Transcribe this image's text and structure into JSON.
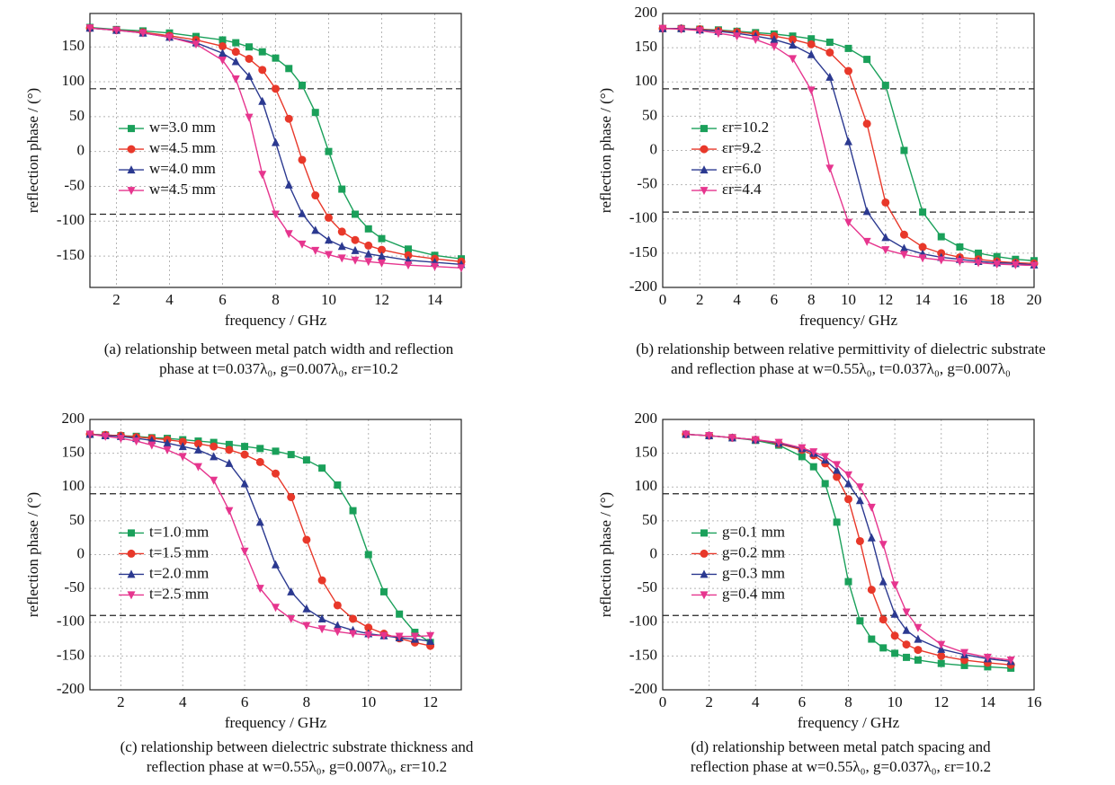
{
  "chart_data": [
    {
      "type": "line",
      "xlabel": "frequency / GHz",
      "ylabel": "reflection phase / (°)",
      "caption": [
        "(a) relationship between metal patch width and reflection",
        "phase at t=0.037λ₀, g=0.007λ₀, εr=10.2"
      ],
      "x": [
        1,
        2,
        3,
        4,
        5,
        6,
        6.5,
        7,
        7.5,
        8,
        8.5,
        9,
        9.5,
        10,
        10.5,
        11,
        11.5,
        12,
        13,
        14,
        15
      ],
      "xlim": [
        1,
        15
      ],
      "xticks": [
        2,
        4,
        6,
        8,
        10,
        12,
        14
      ],
      "ylim": [
        -195,
        198
      ],
      "yticks": [
        -150,
        -100,
        -50,
        0,
        50,
        100,
        150
      ],
      "grid": true,
      "hlines": [
        90,
        -90
      ],
      "legend": "center left",
      "series": [
        {
          "name": "w=3.0 mm",
          "color": "#1aa05a",
          "marker": "square",
          "values": [
            178,
            175,
            173,
            170,
            165,
            160,
            156,
            150,
            143,
            134,
            119,
            95,
            56,
            0,
            -54,
            -90,
            -111,
            -125,
            -140,
            -149,
            -154
          ]
        },
        {
          "name": "w=4.5 mm",
          "color": "#e8382a",
          "marker": "circle",
          "values": [
            177,
            174,
            171,
            166,
            160,
            151,
            143,
            133,
            117,
            90,
            47,
            -12,
            -63,
            -95,
            -115,
            -127,
            -135,
            -141,
            -149,
            -154,
            -158
          ]
        },
        {
          "name": "w=4.0 mm",
          "color": "#2b3990",
          "marker": "triangle-up",
          "values": [
            177,
            174,
            170,
            164,
            156,
            141,
            129,
            108,
            72,
            13,
            -48,
            -89,
            -113,
            -127,
            -136,
            -142,
            -147,
            -150,
            -156,
            -159,
            -162
          ]
        },
        {
          "name": "w=4.5 mm",
          "color": "#e6358e",
          "marker": "triangle-down",
          "values": [
            177,
            174,
            170,
            164,
            154,
            131,
            104,
            49,
            -33,
            -90,
            -118,
            -133,
            -142,
            -148,
            -153,
            -156,
            -158,
            -160,
            -163,
            -165,
            -167
          ]
        }
      ]
    },
    {
      "type": "line",
      "xlabel": "frequency/ GHz",
      "ylabel": "reflection phase / (°)",
      "caption": [
        "(b) relationship between relative permittivity of dielectric substrate",
        "and reflection phase at w=0.55λ₀, t=0.037λ₀, g=0.007λ₀"
      ],
      "x": [
        0,
        1,
        2,
        3,
        4,
        5,
        6,
        7,
        8,
        9,
        10,
        11,
        12,
        13,
        14,
        15,
        16,
        17,
        18,
        19,
        20
      ],
      "xlim": [
        0,
        20
      ],
      "xticks": [
        0,
        2,
        4,
        6,
        8,
        10,
        12,
        14,
        16,
        18,
        20
      ],
      "ylim": [
        -200,
        200
      ],
      "yticks": [
        -200,
        -150,
        -100,
        -50,
        0,
        50,
        100,
        150,
        200
      ],
      "grid": true,
      "hlines": [
        90,
        -90
      ],
      "legend": "center left",
      "series": [
        {
          "name": "εr=10.2",
          "color": "#1aa05a",
          "marker": "square",
          "values": [
            178,
            178,
            177,
            176,
            174,
            172,
            170,
            167,
            163,
            158,
            149,
            133,
            95,
            0,
            -90,
            -126,
            -141,
            -150,
            -155,
            -159,
            -161
          ]
        },
        {
          "name": "εr=9.2",
          "color": "#e8382a",
          "marker": "circle",
          "values": [
            178,
            178,
            177,
            175,
            173,
            170,
            167,
            162,
            155,
            143,
            116,
            39,
            -76,
            -123,
            -141,
            -150,
            -156,
            -159,
            -162,
            -164,
            -165
          ]
        },
        {
          "name": "εr=6.0",
          "color": "#2b3990",
          "marker": "triangle-up",
          "values": [
            178,
            178,
            176,
            174,
            171,
            167,
            162,
            154,
            140,
            107,
            13,
            -89,
            -127,
            -143,
            -151,
            -156,
            -159,
            -162,
            -164,
            -165,
            -167
          ]
        },
        {
          "name": "εr=4.4",
          "color": "#e6358e",
          "marker": "triangle-down",
          "values": [
            178,
            177,
            175,
            171,
            167,
            162,
            152,
            134,
            88,
            -26,
            -105,
            -133,
            -145,
            -152,
            -157,
            -160,
            -162,
            -164,
            -166,
            -167,
            -168
          ]
        }
      ]
    },
    {
      "type": "line",
      "xlabel": "frequency / GHz",
      "ylabel": "reflection phase / (°)",
      "caption": [
        "(c) relationship between dielectric substrate thickness and",
        "reflection phase at w=0.55λ₀, g=0.007λ₀, εr=10.2"
      ],
      "x": [
        1,
        1.5,
        2,
        2.5,
        3,
        3.5,
        4,
        4.5,
        5,
        5.5,
        6,
        6.5,
        7,
        7.5,
        8,
        8.5,
        9,
        9.5,
        10,
        10.5,
        11,
        11.5,
        12
      ],
      "xlim": [
        1,
        13
      ],
      "xticks": [
        2,
        4,
        6,
        8,
        10,
        12
      ],
      "ylim": [
        -200,
        200
      ],
      "yticks": [
        -200,
        -150,
        -100,
        -50,
        0,
        50,
        100,
        150,
        200
      ],
      "grid": true,
      "hlines": [
        90,
        -90
      ],
      "legend": "center left",
      "series": [
        {
          "name": "t=1.0 mm",
          "color": "#1aa05a",
          "marker": "square",
          "values": [
            178,
            177,
            176,
            175,
            173,
            172,
            170,
            168,
            166,
            163,
            160,
            157,
            153,
            148,
            140,
            128,
            103,
            65,
            0,
            -55,
            -88,
            -115,
            -130
          ]
        },
        {
          "name": "t=1.5 mm",
          "color": "#e8382a",
          "marker": "circle",
          "values": [
            178,
            177,
            176,
            174,
            172,
            170,
            167,
            164,
            160,
            155,
            148,
            137,
            120,
            85,
            22,
            -38,
            -75,
            -95,
            -108,
            -117,
            -124,
            -130,
            -135
          ]
        },
        {
          "name": "t=2.0 mm",
          "color": "#2b3990",
          "marker": "triangle-up",
          "values": [
            178,
            176,
            175,
            172,
            169,
            165,
            160,
            155,
            145,
            135,
            105,
            48,
            -15,
            -55,
            -80,
            -95,
            -105,
            -112,
            -117,
            -120,
            -123,
            -125,
            -128
          ]
        },
        {
          "name": "t=2.5 mm",
          "color": "#e6358e",
          "marker": "triangle-down",
          "values": [
            178,
            175,
            172,
            168,
            162,
            155,
            145,
            130,
            110,
            65,
            5,
            -50,
            -78,
            -95,
            -105,
            -110,
            -114,
            -117,
            -119,
            -120,
            -121,
            -121,
            -120
          ]
        }
      ]
    },
    {
      "type": "line",
      "xlabel": "frequency / GHz",
      "ylabel": "reflection phase / (°)",
      "caption": [
        "(d) relationship between metal patch spacing and",
        "reflection phase at w=0.55λ₀, g=0.037λ₀, εr=10.2"
      ],
      "x": [
        1,
        2,
        3,
        4,
        5,
        6,
        6.5,
        7,
        7.5,
        8,
        8.5,
        9,
        9.5,
        10,
        10.5,
        11,
        12,
        13,
        14,
        15
      ],
      "xlim": [
        0,
        16
      ],
      "xticks": [
        0,
        2,
        4,
        6,
        8,
        10,
        12,
        14,
        16
      ],
      "ylim": [
        -200,
        200
      ],
      "yticks": [
        -200,
        -150,
        -100,
        -50,
        0,
        50,
        100,
        150,
        200
      ],
      "grid": true,
      "hlines": [
        90,
        -90
      ],
      "legend": "center left",
      "series": [
        {
          "name": "g=0.1 mm",
          "color": "#1aa05a",
          "marker": "square",
          "values": [
            178,
            176,
            173,
            169,
            162,
            145,
            130,
            105,
            48,
            -40,
            -98,
            -125,
            -138,
            -146,
            -152,
            -156,
            -161,
            -164,
            -166,
            -168
          ]
        },
        {
          "name": "g=0.2 mm",
          "color": "#e8382a",
          "marker": "circle",
          "values": [
            178,
            176,
            173,
            170,
            164,
            155,
            147,
            135,
            115,
            82,
            20,
            -52,
            -96,
            -120,
            -133,
            -141,
            -150,
            -156,
            -160,
            -163
          ]
        },
        {
          "name": "g=0.3 mm",
          "color": "#2b3990",
          "marker": "triangle-up",
          "values": [
            178,
            176,
            173,
            170,
            165,
            157,
            150,
            140,
            125,
            105,
            80,
            25,
            -40,
            -88,
            -112,
            -125,
            -140,
            -148,
            -154,
            -158
          ]
        },
        {
          "name": "g=0.4 mm",
          "color": "#e6358e",
          "marker": "triangle-down",
          "values": [
            178,
            176,
            173,
            170,
            166,
            158,
            152,
            145,
            133,
            118,
            100,
            70,
            15,
            -45,
            -85,
            -108,
            -133,
            -145,
            -152,
            -156
          ]
        }
      ]
    }
  ]
}
